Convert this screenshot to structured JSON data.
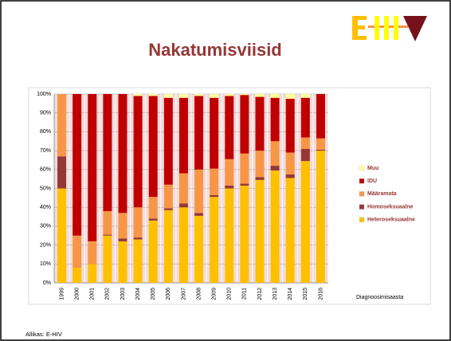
{
  "chart_data": {
    "type": "stacked_bar",
    "title": "Nakatumisviisid",
    "x_label": "Diagnoosimisaasta",
    "source": "Allikas: E-HIV",
    "categories": [
      "1999",
      "2000",
      "2001",
      "2002",
      "2003",
      "2004",
      "2005",
      "2006",
      "2007",
      "2008",
      "2009",
      "2010",
      "2011",
      "2012",
      "2013",
      "2014",
      "2015",
      "2016"
    ],
    "series": [
      {
        "name": "Heteroseksuaalne",
        "color": "#ffc000",
        "values": [
          50,
          8,
          10,
          25,
          22,
          23,
          33,
          38.5,
          40,
          35.5,
          45.5,
          50,
          51.5,
          54.5,
          59.5,
          55.5,
          64.5,
          70
        ]
      },
      {
        "name": "Homoseksuaalne",
        "color": "#953735",
        "values": [
          17,
          0,
          0,
          0.5,
          1.5,
          1,
          1,
          1,
          2,
          1.5,
          1,
          1.5,
          1,
          1.5,
          2.5,
          2,
          6.5,
          0.5
        ]
      },
      {
        "name": "Määramata",
        "color": "#f79646",
        "values": [
          33,
          17,
          12,
          12.5,
          13.5,
          16,
          11.5,
          12.5,
          16,
          23,
          14,
          14,
          16,
          14,
          13,
          11.5,
          6,
          6
        ]
      },
      {
        "name": "IDU",
        "color": "#c00000",
        "values": [
          0,
          75,
          78,
          62,
          63,
          59,
          53.5,
          46,
          40,
          39,
          37.5,
          33.5,
          31,
          28.5,
          23,
          28.5,
          21,
          23.5
        ]
      },
      {
        "name": "Muu",
        "color": "#ffff99",
        "values": [
          0,
          0,
          0,
          0,
          0,
          1,
          1,
          2,
          2,
          1,
          2,
          1,
          0.5,
          1.5,
          2,
          2.5,
          2,
          0
        ]
      }
    ],
    "ylim": [
      0,
      100
    ],
    "yticks": [
      {
        "value": 0,
        "label": "0%"
      },
      {
        "value": 10,
        "label": "10%"
      },
      {
        "value": 20,
        "label": "20%"
      },
      {
        "value": 30,
        "label": "30%"
      },
      {
        "value": 40,
        "label": "40%"
      },
      {
        "value": 50,
        "label": "50%"
      },
      {
        "value": 60,
        "label": "60%"
      },
      {
        "value": 70,
        "label": "70%"
      },
      {
        "value": 80,
        "label": "80%"
      },
      {
        "value": 90,
        "label": "90%"
      },
      {
        "value": 100,
        "label": "100%"
      }
    ],
    "grid": true,
    "legend": "right"
  }
}
